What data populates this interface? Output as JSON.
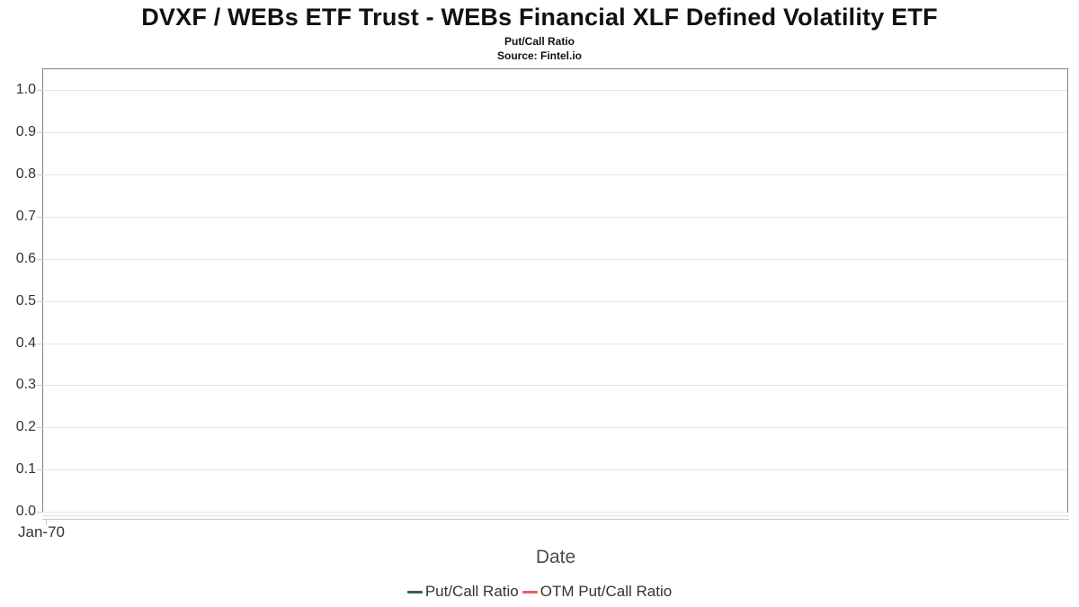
{
  "header": {
    "title": "DVXF / WEBs ETF Trust - WEBs Financial XLF Defined Volatility ETF",
    "subtitle": "Put/Call Ratio",
    "source": "Source: Fintel.io"
  },
  "chart_data": {
    "type": "line",
    "title": "DVXF / WEBs ETF Trust - WEBs Financial XLF Defined Volatility ETF",
    "subtitle": "Put/Call Ratio",
    "source": "Source: Fintel.io",
    "xlabel": "Date",
    "ylabel": "",
    "x_tick_labels": [
      "Jan-70"
    ],
    "y_ticks": [
      0.0,
      0.1,
      0.2,
      0.3,
      0.4,
      0.5,
      0.6,
      0.7,
      0.8,
      0.9,
      1.0
    ],
    "y_tick_labels": [
      "0.0",
      "0.1",
      "0.2",
      "0.3",
      "0.4",
      "0.5",
      "0.6",
      "0.7",
      "0.8",
      "0.9",
      "1.0"
    ],
    "ylim": [
      0,
      1.05
    ],
    "grid": true,
    "legend_position": "bottom",
    "series": [
      {
        "name": "Put/Call Ratio",
        "color": "#34654d",
        "x": [],
        "values": []
      },
      {
        "name": "OTM Put/Call Ratio",
        "color": "#f45b5b",
        "x": [],
        "values": []
      }
    ],
    "note": "empty chart - no data points plotted"
  },
  "colors": {
    "plot_border": "#808080",
    "gridline": "#e6e6e6",
    "axis_line": "#c9c9c9",
    "title_text": "#111111",
    "tick_text": "#333333",
    "axis_title_text": "#4d4d4d"
  }
}
